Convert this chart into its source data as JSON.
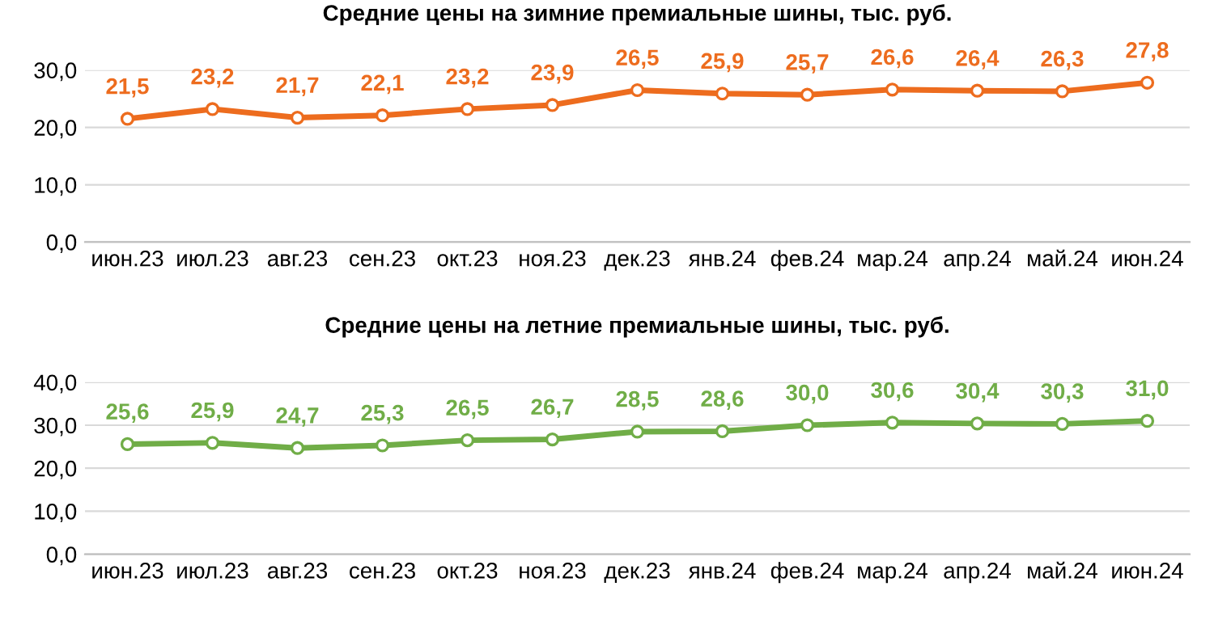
{
  "chart_data": [
    {
      "type": "line",
      "title": "Средние цены на зимние премиальные шины, тыс. руб.",
      "categories": [
        "июн.23",
        "июл.23",
        "авг.23",
        "сен.23",
        "окт.23",
        "ноя.23",
        "дек.23",
        "янв.24",
        "фев.24",
        "мар.24",
        "апр.24",
        "май.24",
        "июн.24"
      ],
      "series": [
        {
          "color": "#ed6c1e",
          "values": [
            21.5,
            23.2,
            21.7,
            22.1,
            23.2,
            23.9,
            26.5,
            25.9,
            25.7,
            26.6,
            26.4,
            26.3,
            27.8
          ],
          "value_labels": [
            "21,5",
            "23,2",
            "21,7",
            "22,1",
            "23,2",
            "23,9",
            "26,5",
            "25,9",
            "25,7",
            "26,6",
            "26,4",
            "26,3",
            "27,8"
          ]
        }
      ],
      "ylim": [
        0,
        30
      ],
      "yticks": [
        {
          "value": 0,
          "label": "0,0"
        },
        {
          "value": 10,
          "label": "10,0"
        },
        {
          "value": 20,
          "label": "20,0"
        },
        {
          "value": 30,
          "label": "30,0"
        }
      ],
      "grid": "y",
      "legend": false,
      "marker": "circle",
      "line_style": "solid"
    },
    {
      "type": "line",
      "title": "Средние цены на летние премиальные шины, тыс. руб.",
      "categories": [
        "июн.23",
        "июл.23",
        "авг.23",
        "сен.23",
        "окт.23",
        "ноя.23",
        "дек.23",
        "янв.24",
        "фев.24",
        "мар.24",
        "апр.24",
        "май.24",
        "июн.24"
      ],
      "series": [
        {
          "color": "#70ad47",
          "values": [
            25.6,
            25.9,
            24.7,
            25.3,
            26.5,
            26.7,
            28.5,
            28.6,
            30.0,
            30.6,
            30.4,
            30.3,
            31.0
          ],
          "value_labels": [
            "25,6",
            "25,9",
            "24,7",
            "25,3",
            "26,5",
            "26,7",
            "28,5",
            "28,6",
            "30,0",
            "30,6",
            "30,4",
            "30,3",
            "31,0"
          ]
        }
      ],
      "ylim": [
        0,
        40
      ],
      "yticks": [
        {
          "value": 0,
          "label": "0,0"
        },
        {
          "value": 10,
          "label": "10,0"
        },
        {
          "value": 20,
          "label": "20,0"
        },
        {
          "value": 30,
          "label": "30,0"
        },
        {
          "value": 40,
          "label": "40,0"
        }
      ],
      "grid": "y",
      "legend": false,
      "marker": "circle",
      "line_style": "solid"
    }
  ]
}
